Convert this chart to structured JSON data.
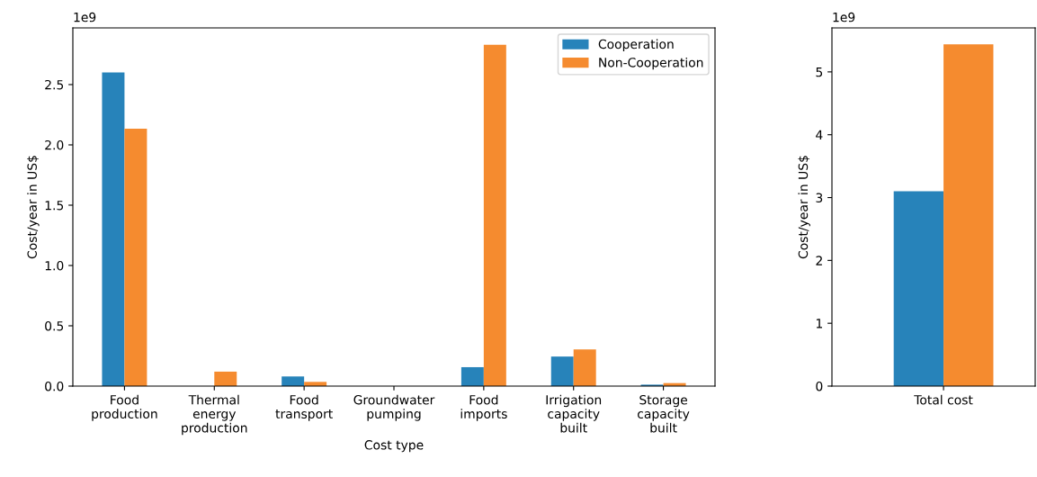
{
  "chart_data": [
    {
      "type": "bar",
      "xlabel": "Cost type",
      "ylabel": "Cost/year in US$",
      "annotations": [
        "1e9"
      ],
      "categories": [
        "Food\nproduction",
        "Thermal\nenergy\nproduction",
        "Food\ntransport",
        "Groundwater\npumping",
        "Food\nimports",
        "Irrigation\ncapacity\nbuilt",
        "Storage\ncapacity\nbuilt"
      ],
      "series": [
        {
          "name": "Cooperation",
          "color": "#2783ba",
          "values": [
            2.6,
            0,
            0.08,
            0,
            0.157,
            0.245,
            0.012
          ]
        },
        {
          "name": "Non-Cooperation",
          "color": "#f58b2f",
          "values": [
            2.134,
            0.12,
            0.035,
            0,
            2.83,
            0.305,
            0.025
          ]
        }
      ],
      "ylim": [
        0,
        2.97
      ],
      "yticks": [
        {
          "value": 0,
          "label": "0.0"
        },
        0.5,
        {
          "value": 1,
          "label": "1.0"
        },
        1.5,
        {
          "value": 2,
          "label": "2.0"
        },
        2.5
      ],
      "legend": "top right"
    },
    {
      "type": "bar",
      "ylabel": "Cost/year in US$",
      "annotations": [
        "1e9"
      ],
      "categories": [
        "Total cost"
      ],
      "series": [
        {
          "color": "#2783ba",
          "values": [
            3.1
          ]
        },
        {
          "color": "#f58b2f",
          "values": [
            5.44
          ]
        }
      ],
      "ylim": [
        0,
        5.7
      ],
      "yticks": [
        0,
        1,
        2,
        3,
        4,
        5
      ]
    }
  ]
}
